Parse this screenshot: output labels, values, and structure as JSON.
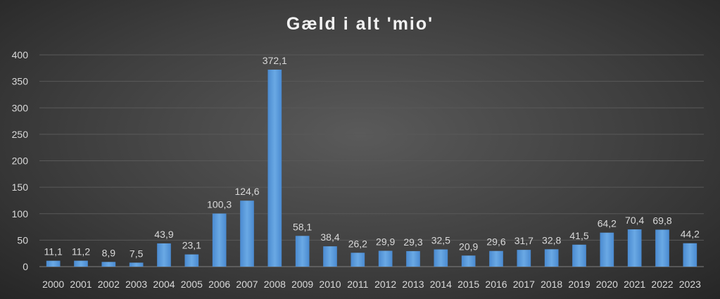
{
  "chart_data": {
    "type": "bar",
    "title": "Gæld i alt 'mio'",
    "xlabel": "",
    "ylabel": "",
    "ylim": [
      0,
      400
    ],
    "yticks": [
      0,
      50,
      100,
      150,
      200,
      250,
      300,
      350,
      400
    ],
    "grid": true,
    "legend": "none",
    "categories": [
      "2000",
      "2001",
      "2002",
      "2003",
      "2004",
      "2005",
      "2006",
      "2007",
      "2008",
      "2009",
      "2010",
      "2011",
      "2012",
      "2013",
      "2014",
      "2015",
      "2016",
      "2017",
      "2018",
      "2019",
      "2020",
      "2021",
      "2022",
      "2023"
    ],
    "values": [
      11.1,
      11.2,
      8.9,
      7.5,
      43.9,
      23.1,
      100.3,
      124.6,
      372.1,
      58.1,
      38.4,
      26.2,
      29.9,
      29.3,
      32.5,
      20.9,
      29.6,
      31.7,
      32.8,
      41.5,
      64.2,
      70.4,
      69.8,
      44.2
    ],
    "value_labels": [
      "11,1",
      "11,2",
      "8,9",
      "7,5",
      "43,9",
      "23,1",
      "100,3",
      "124,6",
      "372,1",
      "58,1",
      "38,4",
      "26,2",
      "29,9",
      "29,3",
      "32,5",
      "20,9",
      "29,6",
      "31,7",
      "32,8",
      "41,5",
      "64,2",
      "70,4",
      "69,8",
      "44,2"
    ],
    "colors": {
      "bar": "#5b9bd5",
      "background": "#404040",
      "text": "#d9d9d9",
      "grid": "#595959"
    }
  }
}
